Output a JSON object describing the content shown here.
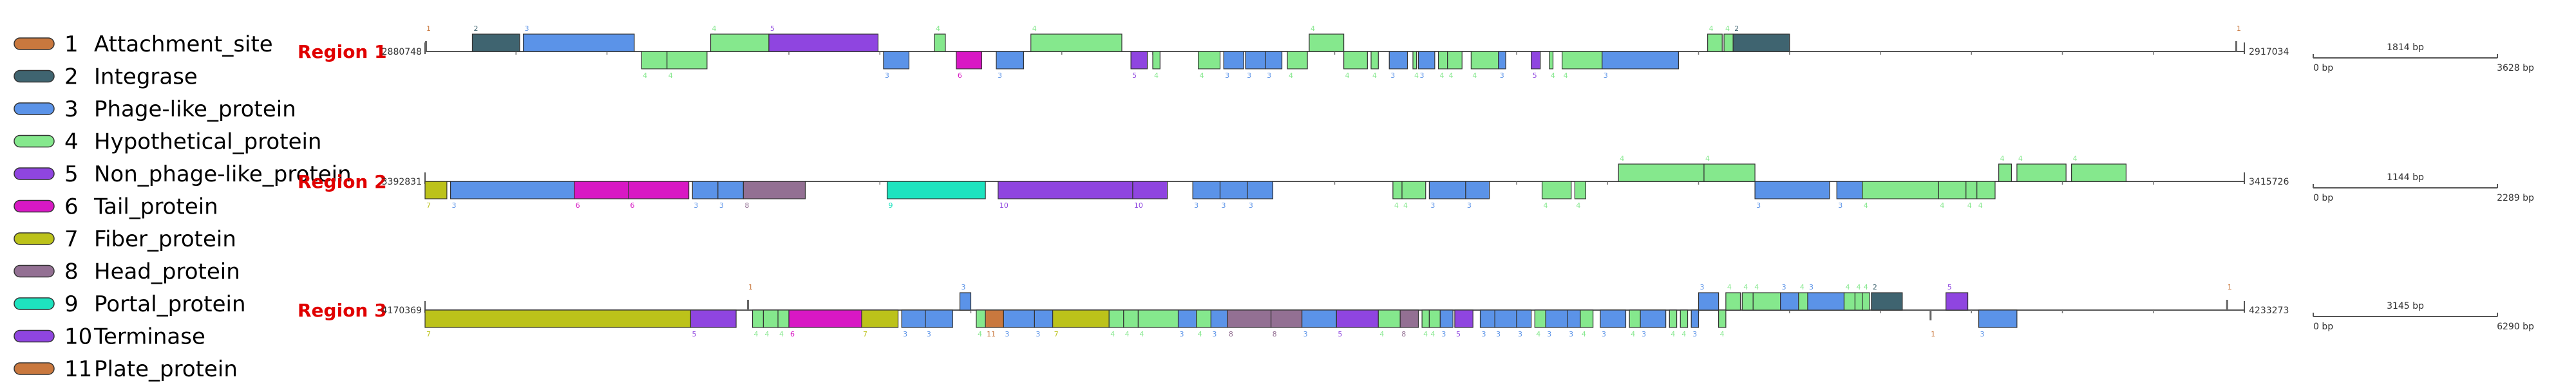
{
  "legend": [
    {
      "num": "1",
      "name": "Attachment_site",
      "color": "#c9783e"
    },
    {
      "num": "2",
      "name": "Integrase",
      "color": "#3f6470"
    },
    {
      "num": "3",
      "name": "Phage-like_protein",
      "color": "#5b93e8"
    },
    {
      "num": "4",
      "name": "Hypothetical_protein",
      "color": "#85e88d"
    },
    {
      "num": "5",
      "name": "Non_phage-like_protein",
      "color": "#8f45e0"
    },
    {
      "num": "6",
      "name": "Tail_protein",
      "color": "#d818c4"
    },
    {
      "num": "7",
      "name": "Fiber_protein",
      "color": "#bcc21a"
    },
    {
      "num": "8",
      "name": "Head_protein",
      "color": "#937093"
    },
    {
      "num": "9",
      "name": "Portal_protein",
      "color": "#1ee3bf"
    },
    {
      "num": "10",
      "name": "Terminase",
      "color": "#8f45e0"
    },
    {
      "num": "11",
      "name": "Plate_protein",
      "color": "#c9783e"
    }
  ],
  "regions": [
    {
      "title": "Region 1",
      "start": "2880748",
      "end": "2917034",
      "scale": {
        "label": "1814 bp",
        "left": "0 bp",
        "right": "3628 bp"
      },
      "features": [
        {
          "type": 1,
          "s": 0.0,
          "e": 0.002,
          "strand": 1
        },
        {
          "type": 2,
          "s": 0.026,
          "e": 0.052,
          "strand": 1
        },
        {
          "type": 3,
          "s": 0.054,
          "e": 0.115,
          "strand": 1
        },
        {
          "type": 4,
          "s": 0.119,
          "e": 0.133,
          "strand": -1
        },
        {
          "type": 4,
          "s": 0.133,
          "e": 0.155,
          "strand": -1
        },
        {
          "type": 4,
          "s": 0.157,
          "e": 0.189,
          "strand": 1
        },
        {
          "type": 5,
          "s": 0.189,
          "e": 0.249,
          "strand": 1
        },
        {
          "type": 3,
          "s": 0.252,
          "e": 0.266,
          "strand": -1
        },
        {
          "type": 4,
          "s": 0.28,
          "e": 0.286,
          "strand": 1
        },
        {
          "type": 6,
          "s": 0.292,
          "e": 0.306,
          "strand": -1
        },
        {
          "type": 3,
          "s": 0.314,
          "e": 0.329,
          "strand": -1
        },
        {
          "type": 4,
          "s": 0.333,
          "e": 0.383,
          "strand": 1
        },
        {
          "type": 5,
          "s": 0.388,
          "e": 0.397,
          "strand": -1
        },
        {
          "type": 4,
          "s": 0.4,
          "e": 0.404,
          "strand": -1
        },
        {
          "type": 4,
          "s": 0.425,
          "e": 0.437,
          "strand": -1
        },
        {
          "type": 3,
          "s": 0.439,
          "e": 0.45,
          "strand": -1
        },
        {
          "type": 3,
          "s": 0.451,
          "e": 0.462,
          "strand": -1
        },
        {
          "type": 3,
          "s": 0.462,
          "e": 0.471,
          "strand": -1
        },
        {
          "type": 4,
          "s": 0.474,
          "e": 0.485,
          "strand": -1
        },
        {
          "type": 4,
          "s": 0.486,
          "e": 0.505,
          "strand": 1
        },
        {
          "type": 4,
          "s": 0.505,
          "e": 0.518,
          "strand": -1
        },
        {
          "type": 4,
          "s": 0.52,
          "e": 0.524,
          "strand": -1
        },
        {
          "type": 3,
          "s": 0.53,
          "e": 0.54,
          "strand": -1
        },
        {
          "type": 4,
          "s": 0.543,
          "e": 0.545,
          "strand": -1
        },
        {
          "type": 3,
          "s": 0.546,
          "e": 0.555,
          "strand": -1
        },
        {
          "type": 4,
          "s": 0.557,
          "e": 0.562,
          "strand": -1
        },
        {
          "type": 4,
          "s": 0.562,
          "e": 0.57,
          "strand": -1
        },
        {
          "type": 4,
          "s": 0.575,
          "e": 0.59,
          "strand": -1
        },
        {
          "type": 3,
          "s": 0.59,
          "e": 0.594,
          "strand": -1
        },
        {
          "type": 5,
          "s": 0.608,
          "e": 0.613,
          "strand": -1
        },
        {
          "type": 4,
          "s": 0.618,
          "e": 0.62,
          "strand": -1
        },
        {
          "type": 4,
          "s": 0.625,
          "e": 0.647,
          "strand": -1
        },
        {
          "type": 3,
          "s": 0.647,
          "e": 0.689,
          "strand": -1
        },
        {
          "type": 4,
          "s": 0.705,
          "e": 0.713,
          "strand": 1
        },
        {
          "type": 4,
          "s": 0.714,
          "e": 0.719,
          "strand": 1
        },
        {
          "type": 2,
          "s": 0.719,
          "e": 0.75,
          "strand": 1
        },
        {
          "type": 1,
          "s": 0.995,
          "e": 0.997,
          "strand": 1
        }
      ]
    },
    {
      "title": "Region 2",
      "start": "3392831",
      "end": "3415726",
      "scale": {
        "label": "1144 bp",
        "left": "0 bp",
        "right": "2289 bp"
      },
      "features": [
        {
          "type": 7,
          "s": 0.0,
          "e": 0.012,
          "strand": -1
        },
        {
          "type": 3,
          "s": 0.014,
          "e": 0.082,
          "strand": -1
        },
        {
          "type": 6,
          "s": 0.082,
          "e": 0.112,
          "strand": -1
        },
        {
          "type": 6,
          "s": 0.112,
          "e": 0.145,
          "strand": -1
        },
        {
          "type": 3,
          "s": 0.147,
          "e": 0.161,
          "strand": -1
        },
        {
          "type": 3,
          "s": 0.161,
          "e": 0.175,
          "strand": -1
        },
        {
          "type": 8,
          "s": 0.175,
          "e": 0.209,
          "strand": -1
        },
        {
          "type": 9,
          "s": 0.254,
          "e": 0.308,
          "strand": -1
        },
        {
          "type": 10,
          "s": 0.315,
          "e": 0.389,
          "strand": -1
        },
        {
          "type": 10,
          "s": 0.389,
          "e": 0.408,
          "strand": -1
        },
        {
          "type": 3,
          "s": 0.422,
          "e": 0.437,
          "strand": -1
        },
        {
          "type": 3,
          "s": 0.437,
          "e": 0.452,
          "strand": -1
        },
        {
          "type": 3,
          "s": 0.452,
          "e": 0.466,
          "strand": -1
        },
        {
          "type": 4,
          "s": 0.532,
          "e": 0.537,
          "strand": -1
        },
        {
          "type": 4,
          "s": 0.537,
          "e": 0.55,
          "strand": -1
        },
        {
          "type": 3,
          "s": 0.552,
          "e": 0.572,
          "strand": -1
        },
        {
          "type": 3,
          "s": 0.572,
          "e": 0.585,
          "strand": -1
        },
        {
          "type": 4,
          "s": 0.614,
          "e": 0.63,
          "strand": -1
        },
        {
          "type": 4,
          "s": 0.632,
          "e": 0.638,
          "strand": -1
        },
        {
          "type": 4,
          "s": 0.656,
          "e": 0.703,
          "strand": 1
        },
        {
          "type": 4,
          "s": 0.703,
          "e": 0.731,
          "strand": 1
        },
        {
          "type": 3,
          "s": 0.731,
          "e": 0.772,
          "strand": -1
        },
        {
          "type": 3,
          "s": 0.776,
          "e": 0.79,
          "strand": -1
        },
        {
          "type": 4,
          "s": 0.79,
          "e": 0.832,
          "strand": -1
        },
        {
          "type": 4,
          "s": 0.832,
          "e": 0.847,
          "strand": -1
        },
        {
          "type": 4,
          "s": 0.847,
          "e": 0.853,
          "strand": -1
        },
        {
          "type": 4,
          "s": 0.853,
          "e": 0.863,
          "strand": -1
        },
        {
          "type": 4,
          "s": 0.865,
          "e": 0.872,
          "strand": 1
        },
        {
          "type": 4,
          "s": 0.875,
          "e": 0.902,
          "strand": 1
        },
        {
          "type": 4,
          "s": 0.905,
          "e": 0.935,
          "strand": 1
        }
      ]
    },
    {
      "title": "Region 3",
      "start": "4170369",
      "end": "4233273",
      "scale": {
        "label": "3145 bp",
        "left": "0 bp",
        "right": "6290 bp"
      },
      "features": [
        {
          "type": 7,
          "s": 0.0,
          "e": 0.146,
          "strand": -1
        },
        {
          "type": 5,
          "s": 0.146,
          "e": 0.171,
          "strand": -1
        },
        {
          "type": 1,
          "s": 0.177,
          "e": 0.179,
          "strand": 1
        },
        {
          "type": 4,
          "s": 0.18,
          "e": 0.186,
          "strand": -1
        },
        {
          "type": 4,
          "s": 0.186,
          "e": 0.194,
          "strand": -1
        },
        {
          "type": 4,
          "s": 0.194,
          "e": 0.2,
          "strand": -1
        },
        {
          "type": 6,
          "s": 0.2,
          "e": 0.24,
          "strand": -1
        },
        {
          "type": 7,
          "s": 0.24,
          "e": 0.26,
          "strand": -1
        },
        {
          "type": 3,
          "s": 0.262,
          "e": 0.275,
          "strand": -1
        },
        {
          "type": 3,
          "s": 0.275,
          "e": 0.29,
          "strand": -1
        },
        {
          "type": 3,
          "s": 0.294,
          "e": 0.3,
          "strand": 1
        },
        {
          "type": 4,
          "s": 0.303,
          "e": 0.308,
          "strand": -1
        },
        {
          "type": 11,
          "s": 0.308,
          "e": 0.318,
          "strand": -1
        },
        {
          "type": 3,
          "s": 0.318,
          "e": 0.335,
          "strand": -1
        },
        {
          "type": 3,
          "s": 0.335,
          "e": 0.345,
          "strand": -1
        },
        {
          "type": 7,
          "s": 0.345,
          "e": 0.376,
          "strand": -1
        },
        {
          "type": 4,
          "s": 0.376,
          "e": 0.384,
          "strand": -1
        },
        {
          "type": 4,
          "s": 0.384,
          "e": 0.392,
          "strand": -1
        },
        {
          "type": 4,
          "s": 0.392,
          "e": 0.414,
          "strand": -1
        },
        {
          "type": 3,
          "s": 0.414,
          "e": 0.424,
          "strand": -1
        },
        {
          "type": 4,
          "s": 0.424,
          "e": 0.432,
          "strand": -1
        },
        {
          "type": 3,
          "s": 0.432,
          "e": 0.441,
          "strand": -1
        },
        {
          "type": 8,
          "s": 0.441,
          "e": 0.465,
          "strand": -1
        },
        {
          "type": 8,
          "s": 0.465,
          "e": 0.482,
          "strand": -1
        },
        {
          "type": 3,
          "s": 0.482,
          "e": 0.501,
          "strand": -1
        },
        {
          "type": 5,
          "s": 0.501,
          "e": 0.524,
          "strand": -1
        },
        {
          "type": 4,
          "s": 0.524,
          "e": 0.536,
          "strand": -1
        },
        {
          "type": 8,
          "s": 0.536,
          "e": 0.546,
          "strand": -1
        },
        {
          "type": 4,
          "s": 0.548,
          "e": 0.552,
          "strand": -1
        },
        {
          "type": 4,
          "s": 0.552,
          "e": 0.558,
          "strand": -1
        },
        {
          "type": 3,
          "s": 0.558,
          "e": 0.565,
          "strand": -1
        },
        {
          "type": 5,
          "s": 0.566,
          "e": 0.576,
          "strand": -1
        },
        {
          "type": 3,
          "s": 0.58,
          "e": 0.588,
          "strand": -1
        },
        {
          "type": 3,
          "s": 0.588,
          "e": 0.6,
          "strand": -1
        },
        {
          "type": 3,
          "s": 0.6,
          "e": 0.608,
          "strand": -1
        },
        {
          "type": 4,
          "s": 0.61,
          "e": 0.616,
          "strand": -1
        },
        {
          "type": 3,
          "s": 0.616,
          "e": 0.628,
          "strand": -1
        },
        {
          "type": 3,
          "s": 0.628,
          "e": 0.635,
          "strand": -1
        },
        {
          "type": 4,
          "s": 0.635,
          "e": 0.642,
          "strand": -1
        },
        {
          "type": 3,
          "s": 0.646,
          "e": 0.66,
          "strand": -1
        },
        {
          "type": 4,
          "s": 0.662,
          "e": 0.668,
          "strand": -1
        },
        {
          "type": 3,
          "s": 0.668,
          "e": 0.682,
          "strand": -1
        },
        {
          "type": 4,
          "s": 0.684,
          "e": 0.688,
          "strand": -1
        },
        {
          "type": 4,
          "s": 0.69,
          "e": 0.694,
          "strand": -1
        },
        {
          "type": 3,
          "s": 0.696,
          "e": 0.7,
          "strand": -1
        },
        {
          "type": 3,
          "s": 0.7,
          "e": 0.711,
          "strand": 1
        },
        {
          "type": 4,
          "s": 0.711,
          "e": 0.715,
          "strand": -1
        },
        {
          "type": 4,
          "s": 0.715,
          "e": 0.723,
          "strand": 1
        },
        {
          "type": 4,
          "s": 0.724,
          "e": 0.73,
          "strand": 1
        },
        {
          "type": 4,
          "s": 0.73,
          "e": 0.745,
          "strand": 1
        },
        {
          "type": 3,
          "s": 0.745,
          "e": 0.755,
          "strand": 1
        },
        {
          "type": 4,
          "s": 0.755,
          "e": 0.76,
          "strand": 1
        },
        {
          "type": 3,
          "s": 0.76,
          "e": 0.78,
          "strand": 1
        },
        {
          "type": 4,
          "s": 0.78,
          "e": 0.786,
          "strand": 1
        },
        {
          "type": 4,
          "s": 0.786,
          "e": 0.79,
          "strand": 1
        },
        {
          "type": 4,
          "s": 0.79,
          "e": 0.794,
          "strand": 1
        },
        {
          "type": 2,
          "s": 0.795,
          "e": 0.812,
          "strand": 1
        },
        {
          "type": 1,
          "s": 0.827,
          "e": 0.829,
          "strand": -1
        },
        {
          "type": 5,
          "s": 0.836,
          "e": 0.848,
          "strand": 1
        },
        {
          "type": 3,
          "s": 0.854,
          "e": 0.875,
          "strand": -1
        },
        {
          "type": 1,
          "s": 0.99,
          "e": 0.992,
          "strand": 1
        }
      ]
    }
  ]
}
